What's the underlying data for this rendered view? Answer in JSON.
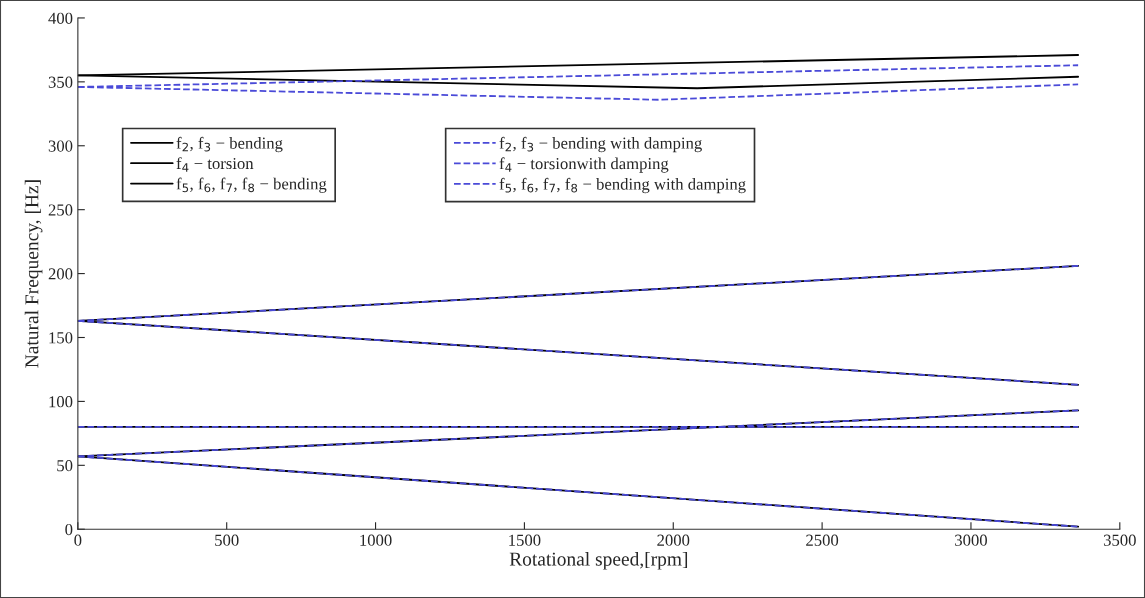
{
  "chart_data": {
    "type": "line",
    "xlabel": "Rotational speed,[rpm]",
    "ylabel": "Natural Frequency, [Hz]",
    "xlim": [
      0,
      3500
    ],
    "ylim": [
      0,
      400
    ],
    "xticks": [
      0,
      500,
      1000,
      1500,
      2000,
      2500,
      3000,
      3500
    ],
    "yticks": [
      0,
      50,
      100,
      150,
      200,
      250,
      300,
      350,
      400
    ],
    "legend": "top left",
    "series": [
      {
        "name": "f$_{2}$, f$_{3}$ − bending",
        "color": "#000000",
        "line_style": "solid",
        "x": [
          0,
          3360
        ],
        "values": [
          57,
          93
        ]
      },
      {
        "color": "#000000",
        "line_style": "solid",
        "x": [
          0,
          3360
        ],
        "values": [
          57,
          2
        ]
      },
      {
        "name": "f$_{4}$ − torsion",
        "color": "#000000",
        "line_style": "solid",
        "x": [
          0,
          3360
        ],
        "values": [
          80,
          80
        ]
      },
      {
        "name": "f$_{5}$, f$_{6}$, f$_{7}$, f$_{8}$ − bending",
        "color": "#000000",
        "line_style": "solid",
        "x": [
          0,
          3360
        ],
        "values": [
          163,
          206
        ]
      },
      {
        "color": "#000000",
        "line_style": "solid",
        "x": [
          0,
          3360
        ],
        "values": [
          163,
          113
        ]
      },
      {
        "color": "#000000",
        "line_style": "solid",
        "x": [
          0,
          3360
        ],
        "values": [
          355,
          371
        ]
      },
      {
        "color": "#000000",
        "line_style": "solid",
        "x": [
          0,
          2080,
          3360
        ],
        "values": [
          355,
          345,
          354
        ]
      },
      {
        "name": "f$_{2}$, f$_{3}$ − bending with damping",
        "color": "#4a4ad8",
        "line_style": "dashed",
        "x": [
          0,
          3360
        ],
        "values": [
          57,
          93
        ]
      },
      {
        "color": "#4a4ad8",
        "line_style": "dashed",
        "x": [
          0,
          3360
        ],
        "values": [
          57,
          2
        ]
      },
      {
        "name": "f$_{4}$ − torsionwith damping",
        "color": "#4a4ad8",
        "line_style": "dashed",
        "x": [
          0,
          3360
        ],
        "values": [
          80,
          80
        ]
      },
      {
        "name": "f$_{5}$, f$_{6}$, f$_{7}$, f$_{8}$ − bending with damping",
        "color": "#4a4ad8",
        "line_style": "dashed",
        "x": [
          0,
          3360
        ],
        "values": [
          163,
          206
        ]
      },
      {
        "color": "#4a4ad8",
        "line_style": "dashed",
        "x": [
          0,
          3360
        ],
        "values": [
          163,
          113
        ]
      },
      {
        "color": "#4a4ad8",
        "line_style": "dashed",
        "x": [
          0,
          3360
        ],
        "values": [
          346,
          363
        ]
      },
      {
        "color": "#4a4ad8",
        "line_style": "dashed",
        "x": [
          0,
          1950,
          3360
        ],
        "values": [
          346,
          336,
          348
        ]
      }
    ]
  }
}
